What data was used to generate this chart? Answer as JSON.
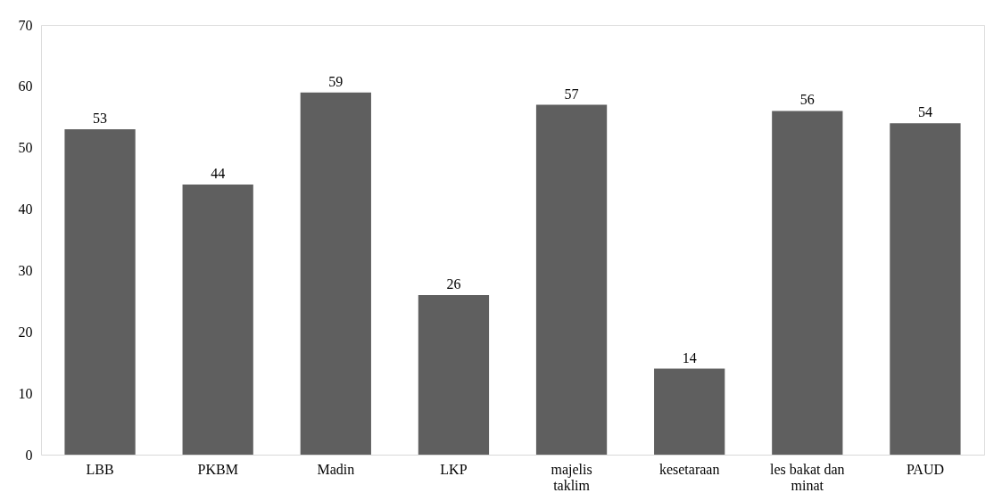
{
  "chart_data": {
    "type": "bar",
    "categories": [
      "LBB",
      "PKBM",
      "Madin",
      "LKP",
      "majelis taklim",
      "kesetaraan",
      "les bakat dan minat",
      "PAUD"
    ],
    "values": [
      53,
      44,
      59,
      26,
      57,
      14,
      56,
      54
    ],
    "color": "#5f5f5f",
    "ylim": [
      0,
      70
    ],
    "yticks": [
      0,
      10,
      20,
      30,
      40,
      50,
      60,
      70
    ],
    "grid": false,
    "data_labels": true
  }
}
